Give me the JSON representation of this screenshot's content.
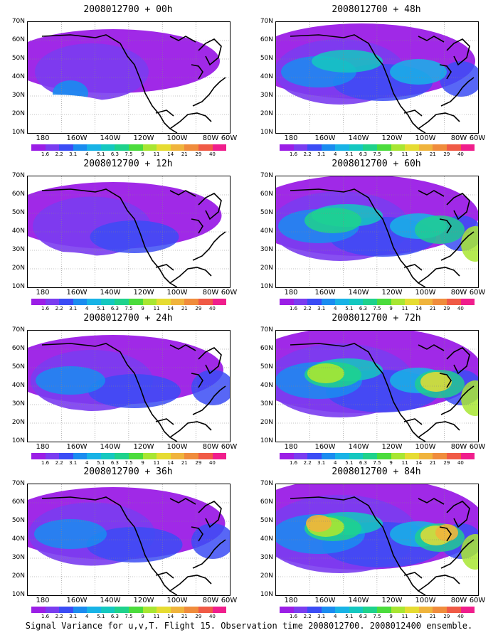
{
  "footer": "Signal Variance for u,v,T. Flight 15. Observation time 2008012700. 2008012400 ensemble.",
  "lat_labels": [
    "70N",
    "60N",
    "50N",
    "40N",
    "30N",
    "20N",
    "10N"
  ],
  "lon_labels": [
    "180",
    "160W",
    "140W",
    "120W",
    "100W",
    "80W",
    "60W"
  ],
  "colorbar": {
    "labels": [
      "1.6",
      "2.2",
      "3.1",
      "4",
      "5.1",
      "6.3",
      "7.5",
      "9",
      "11",
      "14",
      "21",
      "29",
      "40"
    ],
    "colors": [
      "#9b1ee6",
      "#7a3cf0",
      "#3b4cf5",
      "#1a8cf0",
      "#18b3e6",
      "#14c8c0",
      "#1ed28c",
      "#4bdc3c",
      "#a8e632",
      "#e6dc32",
      "#f0b43c",
      "#f08c3c",
      "#f05a46",
      "#f01e8c"
    ]
  },
  "panels": [
    {
      "title": "2008012700 + 00h",
      "level": 0
    },
    {
      "title": "2008012700 + 48h",
      "level": 2
    },
    {
      "title": "2008012700 + 12h",
      "level": 0.5
    },
    {
      "title": "2008012700 + 60h",
      "level": 3
    },
    {
      "title": "2008012700 + 24h",
      "level": 1
    },
    {
      "title": "2008012700 + 72h",
      "level": 4
    },
    {
      "title": "2008012700 + 36h",
      "level": 1.5
    },
    {
      "title": "2008012700 + 84h",
      "level": 5
    }
  ]
}
